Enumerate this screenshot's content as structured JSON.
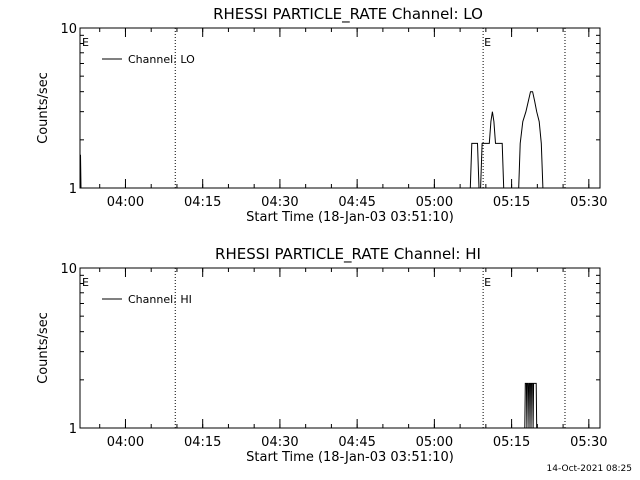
{
  "footer": {
    "timestamp": "14-Oct-2021 08:25"
  },
  "chart_data": [
    {
      "type": "line",
      "title": "RHESSI PARTICLE_RATE Channel: LO",
      "xlabel": "Start Time (18-Jan-03 03:51:10)",
      "ylabel": "Counts/sec",
      "y_scale": "log",
      "ylim": [
        1,
        10
      ],
      "y_ticks": [
        {
          "value": 1,
          "label": "1"
        },
        {
          "value": 10,
          "label": "10"
        }
      ],
      "x_range_minutes": [
        0,
        101
      ],
      "x_ticks": [
        {
          "min": 8.83,
          "label": "04:00"
        },
        {
          "min": 23.83,
          "label": "04:15"
        },
        {
          "min": 38.83,
          "label": "04:30"
        },
        {
          "min": 53.83,
          "label": "04:45"
        },
        {
          "min": 68.83,
          "label": "05:00"
        },
        {
          "min": 83.83,
          "label": "05:15"
        },
        {
          "min": 98.83,
          "label": "05:30"
        }
      ],
      "markers": [
        {
          "min": 0.2,
          "label": "E"
        },
        {
          "min": 78.3,
          "label": "E"
        }
      ],
      "dotted_lines_min": [
        18.5,
        78.3,
        94.2
      ],
      "legend": {
        "position": "top-left",
        "entries": [
          "Channel: LO"
        ]
      },
      "series": [
        {
          "name": "Channel: LO",
          "points": [
            [
              0,
              1.6
            ],
            [
              0.1,
              1.6
            ],
            [
              0.2,
              1.0
            ],
            [
              75.8,
              1.0
            ],
            [
              76.1,
              1.9
            ],
            [
              77.2,
              1.9
            ],
            [
              77.5,
              1.0
            ],
            [
              77.8,
              1.0
            ],
            [
              78.1,
              1.9
            ],
            [
              79.5,
              1.9
            ],
            [
              79.8,
              2.6
            ],
            [
              80.1,
              3.0
            ],
            [
              80.4,
              2.6
            ],
            [
              80.7,
              1.9
            ],
            [
              82.0,
              1.9
            ],
            [
              82.3,
              1.0
            ],
            [
              85.2,
              1.0
            ],
            [
              85.5,
              1.9
            ],
            [
              86.0,
              2.6
            ],
            [
              86.6,
              3.0
            ],
            [
              87.1,
              3.5
            ],
            [
              87.5,
              4.0
            ],
            [
              87.9,
              4.0
            ],
            [
              88.3,
              3.5
            ],
            [
              88.7,
              3.0
            ],
            [
              89.2,
              2.6
            ],
            [
              89.6,
              1.9
            ],
            [
              89.9,
              1.0
            ],
            [
              101,
              1.0
            ]
          ]
        }
      ]
    },
    {
      "type": "line",
      "title": "RHESSI PARTICLE_RATE Channel: HI",
      "xlabel": "Start Time (18-Jan-03 03:51:10)",
      "ylabel": "Counts/sec",
      "y_scale": "log",
      "ylim": [
        1,
        10
      ],
      "y_ticks": [
        {
          "value": 1,
          "label": "1"
        },
        {
          "value": 10,
          "label": "10"
        }
      ],
      "x_range_minutes": [
        0,
        101
      ],
      "x_ticks": [
        {
          "min": 8.83,
          "label": "04:00"
        },
        {
          "min": 23.83,
          "label": "04:15"
        },
        {
          "min": 38.83,
          "label": "04:30"
        },
        {
          "min": 53.83,
          "label": "04:45"
        },
        {
          "min": 68.83,
          "label": "05:00"
        },
        {
          "min": 83.83,
          "label": "05:15"
        },
        {
          "min": 98.83,
          "label": "05:30"
        }
      ],
      "markers": [
        {
          "min": 0.2,
          "label": "E"
        },
        {
          "min": 78.3,
          "label": "E"
        }
      ],
      "dotted_lines_min": [
        18.5,
        78.3,
        94.2
      ],
      "legend": {
        "position": "top-left",
        "entries": [
          "Channel: HI"
        ]
      },
      "series": [
        {
          "name": "Channel: HI",
          "points": [
            [
              0,
              1.0
            ],
            [
              86.4,
              1.0
            ],
            [
              86.5,
              1.9
            ],
            [
              86.7,
              1.9
            ],
            [
              86.8,
              1.0
            ],
            [
              86.9,
              1.9
            ],
            [
              87.1,
              1.9
            ],
            [
              87.2,
              1.0
            ],
            [
              87.3,
              1.9
            ],
            [
              87.5,
              1.9
            ],
            [
              87.6,
              1.0
            ],
            [
              87.7,
              1.9
            ],
            [
              87.9,
              1.9
            ],
            [
              88.0,
              1.0
            ],
            [
              88.1,
              1.9
            ],
            [
              88.6,
              1.9
            ],
            [
              88.7,
              1.0
            ],
            [
              101,
              1.0
            ]
          ]
        }
      ]
    }
  ]
}
